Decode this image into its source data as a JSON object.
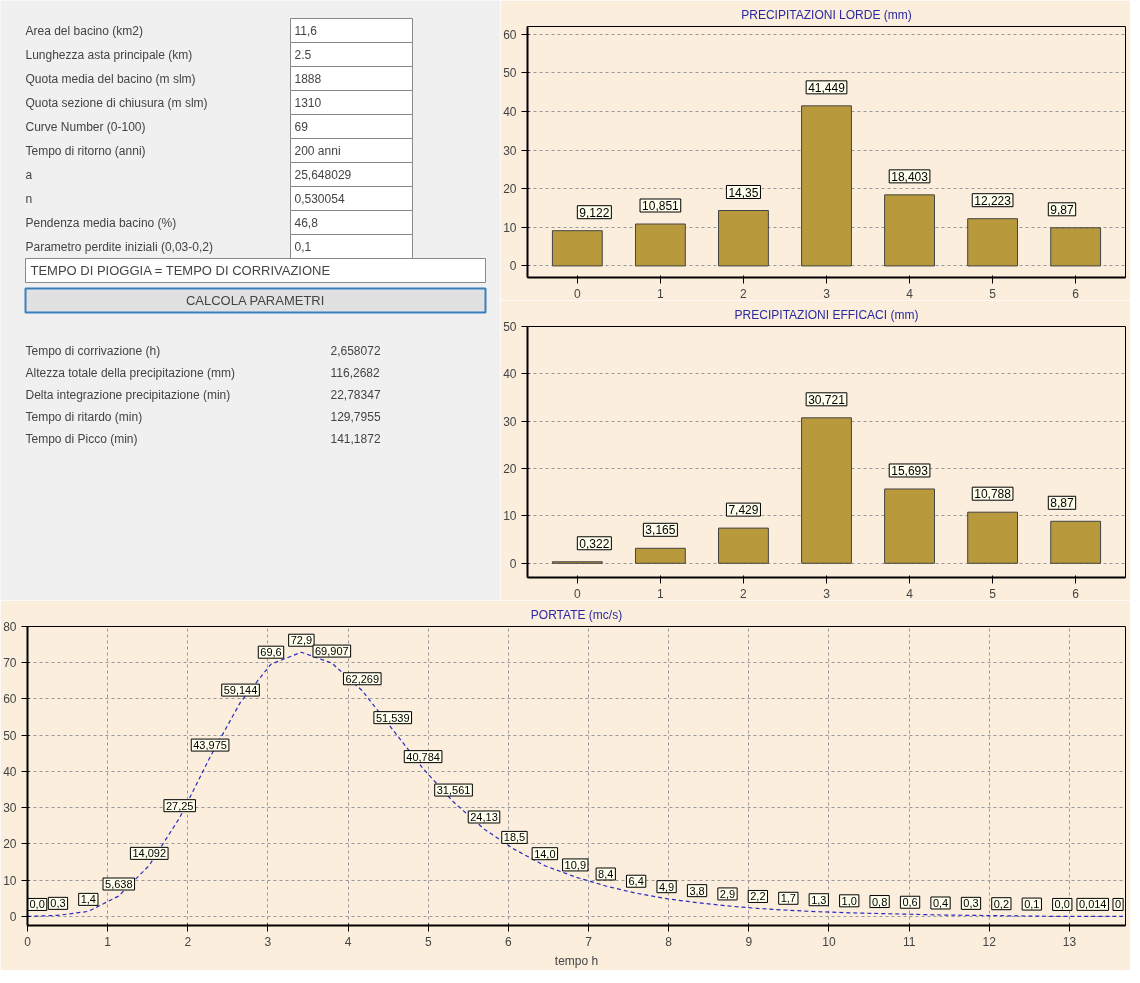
{
  "chart_data": [
    {
      "type": "other",
      "annotations": [
        "Area del bacino (km2)",
        "11,6",
        "Lunghezza asta principale (km)",
        "2.5",
        "Quota media del bacino (m slm)",
        "1888",
        "Quota sezione di chiusura (m slm)",
        "1310",
        "Curve Number (0-100)",
        "69",
        "Tempo di ritorno (anni)",
        "200 anni",
        "a",
        "25,648029",
        "n",
        "0,530054",
        "Pendenza media bacino (%)",
        "46,8",
        "Parametro perdite iniziali (0,03-0,2)",
        "0,1",
        "TEMPO DI PIOGGIA = TEMPO DI CORRIVAZIONE",
        "CALCOLA PARAMETRI",
        "Tempo di corrivazione (h)",
        "2,658072",
        "Altezza totale della precipitazione (mm)",
        "116,2682",
        "Delta integrazione precipitazione (min)",
        "22,78347",
        "Tempo di ritardo (min)",
        "129,7955",
        "Tempo di Picco (min)",
        "141,1872"
      ]
    },
    {
      "type": "bar",
      "title": "PRECIPITAZIONI LORDE (mm)",
      "categories": [
        "0",
        "1",
        "2",
        "3",
        "4",
        "5",
        "6"
      ],
      "values": [
        9.122,
        10.851,
        14.35,
        41.449,
        18.403,
        12.223,
        9.87
      ],
      "value_labels": [
        "9,122",
        "10,851",
        "14,35",
        "41,449",
        "18,403",
        "12,223",
        "9,87"
      ],
      "color": "#b89a3c",
      "ylim": [
        -3,
        62
      ],
      "yticks": [
        0,
        10,
        20,
        30,
        40,
        50,
        60
      ],
      "grid": "y"
    },
    {
      "type": "bar",
      "title": "PRECIPITAZIONI EFFICACI (mm)",
      "categories": [
        "0",
        "1",
        "2",
        "3",
        "4",
        "5",
        "6"
      ],
      "values": [
        0.322,
        3.165,
        7.429,
        30.721,
        15.693,
        10.788,
        8.87
      ],
      "value_labels": [
        "0,322",
        "3,165",
        "7,429",
        "30,721",
        "15,693",
        "10,788",
        "8,87"
      ],
      "color": "#b89a3c",
      "ylim": [
        -3,
        50
      ],
      "yticks": [
        0,
        10,
        20,
        30,
        40,
        50
      ],
      "grid": "y"
    },
    {
      "type": "line",
      "title": "PORTATE (mc/s)",
      "xlabel": "tempo h",
      "x": [
        0,
        0.38,
        0.759,
        1.139,
        1.519,
        1.899,
        2.278,
        2.658,
        3.038,
        3.417,
        3.797,
        4.177,
        4.557,
        4.936,
        5.316,
        5.696,
        6.076,
        6.455,
        6.835,
        7.215,
        7.594,
        7.974,
        8.354,
        8.734,
        9.113,
        9.493,
        9.873,
        10.253,
        10.632,
        11.012,
        11.392,
        11.772,
        12.151,
        12.531,
        12.911,
        13.291,
        13.67
      ],
      "values": [
        0.0,
        0.3,
        1.4,
        5.638,
        14.092,
        27.25,
        43.975,
        59.144,
        69.6,
        72.9,
        69.907,
        62.269,
        51.539,
        40.784,
        31.561,
        24.13,
        18.5,
        14.0,
        10.9,
        8.4,
        6.4,
        4.9,
        3.8,
        2.9,
        2.2,
        1.7,
        1.3,
        1.0,
        0.8,
        0.6,
        0.4,
        0.3,
        0.2,
        0.1,
        0.0,
        0.014,
        0
      ],
      "value_labels": [
        "0,0",
        "0,3",
        "1,4",
        "5,638",
        "14,092",
        "27,25",
        "43,975",
        "59,144",
        "69,6",
        "72,9",
        "69,907",
        "62,269",
        "51,539",
        "40,784",
        "31,561",
        "24,13",
        "18,5",
        "14,0",
        "10,9",
        "8,4",
        "6,4",
        "4,9",
        "3,8",
        "2,9",
        "2,2",
        "1,7",
        "1,3",
        "1,0",
        "0,8",
        "0,6",
        "0,4",
        "0,3",
        "0,2",
        "0,1",
        "0,0",
        "0,014",
        "0"
      ],
      "color": "#2a2ac0",
      "line_style": "dashed",
      "xlim": [
        0,
        13.7
      ],
      "ylim": [
        -2.5,
        80
      ],
      "xticks": [
        0,
        1,
        2,
        3,
        4,
        5,
        6,
        7,
        8,
        9,
        10,
        11,
        12,
        13
      ],
      "yticks": [
        0,
        10,
        20,
        30,
        40,
        50,
        60,
        70,
        80
      ],
      "grid": true
    }
  ]
}
